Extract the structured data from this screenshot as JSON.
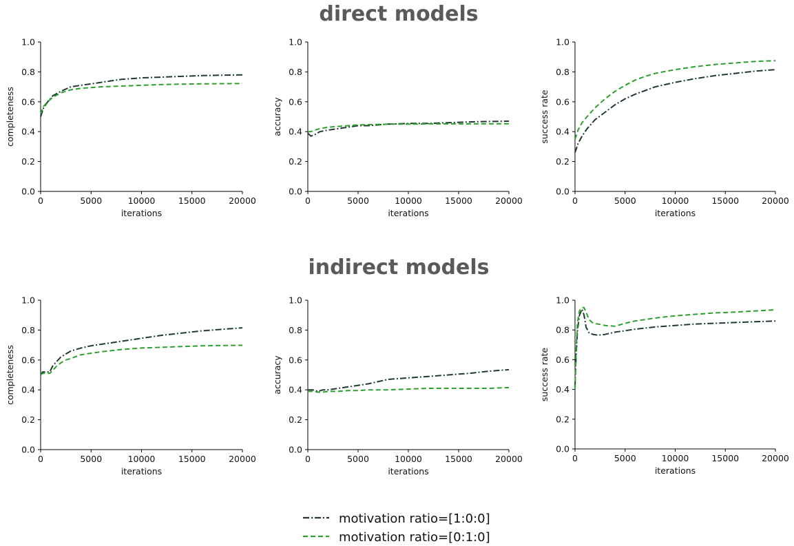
{
  "sections": [
    {
      "title": "direct models"
    },
    {
      "title": "indirect models"
    }
  ],
  "legend": [
    {
      "label": "motivation ratio=[1:0:0]",
      "color": "#1f3a2e",
      "dash": "dashdot"
    },
    {
      "label": "motivation ratio=[0:1:0]",
      "color": "#2ca02c",
      "dash": "dashed"
    }
  ],
  "chart_data": [
    {
      "type": "line",
      "section": "direct models",
      "xlabel": "iterations",
      "ylabel": "completeness",
      "xlim": [
        0,
        20000
      ],
      "ylim": [
        0,
        1.0
      ],
      "xticks": [
        "0",
        "5000",
        "10000",
        "15000",
        "20000"
      ],
      "yticks": [
        "0.0",
        "0.2",
        "0.4",
        "0.6",
        "0.8",
        "1.0"
      ],
      "series": [
        {
          "name": "motivation ratio=[1:0:0]",
          "x": [
            0,
            300,
            700,
            1200,
            2000,
            3000,
            4000,
            5000,
            6000,
            7000,
            8000,
            10000,
            12000,
            14000,
            16000,
            18000,
            20000
          ],
          "y": [
            0.5,
            0.56,
            0.6,
            0.64,
            0.67,
            0.7,
            0.71,
            0.72,
            0.73,
            0.74,
            0.75,
            0.76,
            0.765,
            0.77,
            0.775,
            0.778,
            0.78
          ]
        },
        {
          "name": "motivation ratio=[0:1:0]",
          "x": [
            0,
            300,
            700,
            1200,
            2000,
            3000,
            4000,
            5000,
            6000,
            8000,
            10000,
            12000,
            14000,
            16000,
            18000,
            20000
          ],
          "y": [
            0.52,
            0.57,
            0.6,
            0.63,
            0.66,
            0.68,
            0.69,
            0.695,
            0.7,
            0.705,
            0.71,
            0.715,
            0.718,
            0.72,
            0.721,
            0.722
          ]
        }
      ]
    },
    {
      "type": "line",
      "section": "direct models",
      "xlabel": "iterations",
      "ylabel": "accuracy",
      "xlim": [
        0,
        20000
      ],
      "ylim": [
        0,
        1.0
      ],
      "xticks": [
        "0",
        "5000",
        "10000",
        "15000",
        "20000"
      ],
      "yticks": [
        "0.0",
        "0.2",
        "0.4",
        "0.6",
        "0.8",
        "1.0"
      ],
      "series": [
        {
          "name": "motivation ratio=[1:0:0]",
          "x": [
            0,
            300,
            700,
            1200,
            2000,
            3000,
            4000,
            5000,
            6000,
            8000,
            10000,
            12000,
            14000,
            16000,
            18000,
            20000
          ],
          "y": [
            0.39,
            0.37,
            0.38,
            0.4,
            0.41,
            0.42,
            0.43,
            0.44,
            0.44,
            0.45,
            0.455,
            0.455,
            0.46,
            0.465,
            0.468,
            0.47
          ]
        },
        {
          "name": "motivation ratio=[0:1:0]",
          "x": [
            0,
            300,
            700,
            1200,
            2000,
            3000,
            4000,
            5000,
            6000,
            8000,
            10000,
            12000,
            14000,
            16000,
            18000,
            20000
          ],
          "y": [
            0.4,
            0.4,
            0.41,
            0.42,
            0.43,
            0.435,
            0.44,
            0.445,
            0.447,
            0.45,
            0.45,
            0.452,
            0.452,
            0.452,
            0.453,
            0.453
          ]
        }
      ]
    },
    {
      "type": "line",
      "section": "direct models",
      "xlabel": "iterations",
      "ylabel": "success rate",
      "xlim": [
        0,
        20000
      ],
      "ylim": [
        0,
        1.0
      ],
      "xticks": [
        "0",
        "5000",
        "10000",
        "15000",
        "20000"
      ],
      "yticks": [
        "0.0",
        "0.2",
        "0.4",
        "0.6",
        "0.8",
        "1.0"
      ],
      "series": [
        {
          "name": "motivation ratio=[1:0:0]",
          "x": [
            0,
            300,
            700,
            1200,
            2000,
            3000,
            4000,
            5000,
            6000,
            7000,
            8000,
            10000,
            12000,
            14000,
            16000,
            18000,
            20000
          ],
          "y": [
            0.26,
            0.32,
            0.37,
            0.42,
            0.48,
            0.53,
            0.58,
            0.62,
            0.65,
            0.675,
            0.7,
            0.73,
            0.755,
            0.775,
            0.79,
            0.805,
            0.815
          ]
        },
        {
          "name": "motivation ratio=[0:1:0]",
          "x": [
            0,
            300,
            700,
            1200,
            2000,
            3000,
            4000,
            5000,
            6000,
            7000,
            8000,
            10000,
            12000,
            14000,
            16000,
            18000,
            20000
          ],
          "y": [
            0.35,
            0.41,
            0.46,
            0.5,
            0.56,
            0.62,
            0.67,
            0.71,
            0.745,
            0.77,
            0.79,
            0.815,
            0.835,
            0.85,
            0.86,
            0.87,
            0.875
          ]
        }
      ]
    },
    {
      "type": "line",
      "section": "indirect models",
      "xlabel": "iterations",
      "ylabel": "completeness",
      "xlim": [
        0,
        20000
      ],
      "ylim": [
        0,
        1.0
      ],
      "xticks": [
        "0",
        "5000",
        "10000",
        "15000",
        "20000"
      ],
      "yticks": [
        "0.0",
        "0.2",
        "0.4",
        "0.6",
        "0.8",
        "1.0"
      ],
      "series": [
        {
          "name": "motivation ratio=[1:0:0]",
          "x": [
            0,
            200,
            500,
            900,
            1200,
            1600,
            2000,
            2500,
            3000,
            4000,
            5000,
            6000,
            8000,
            10000,
            12000,
            14000,
            16000,
            18000,
            20000
          ],
          "y": [
            0.5,
            0.52,
            0.52,
            0.52,
            0.56,
            0.59,
            0.62,
            0.64,
            0.66,
            0.68,
            0.695,
            0.705,
            0.725,
            0.745,
            0.765,
            0.78,
            0.795,
            0.805,
            0.815
          ]
        },
        {
          "name": "motivation ratio=[0:1:0]",
          "x": [
            0,
            200,
            500,
            900,
            1200,
            1600,
            2000,
            2500,
            3000,
            4000,
            5000,
            6000,
            8000,
            10000,
            12000,
            14000,
            16000,
            18000,
            20000
          ],
          "y": [
            0.5,
            0.51,
            0.51,
            0.51,
            0.53,
            0.56,
            0.58,
            0.6,
            0.61,
            0.635,
            0.645,
            0.655,
            0.67,
            0.68,
            0.685,
            0.69,
            0.695,
            0.697,
            0.698
          ]
        }
      ]
    },
    {
      "type": "line",
      "section": "indirect models",
      "xlabel": "iterations",
      "ylabel": "accuracy",
      "xlim": [
        0,
        20000
      ],
      "ylim": [
        0,
        1.0
      ],
      "xticks": [
        "0",
        "5000",
        "10000",
        "15000",
        "20000"
      ],
      "yticks": [
        "0.0",
        "0.2",
        "0.4",
        "0.6",
        "0.8",
        "1.0"
      ],
      "series": [
        {
          "name": "motivation ratio=[1:0:0]",
          "x": [
            0,
            500,
            1000,
            1500,
            2000,
            3000,
            4000,
            5000,
            6000,
            8000,
            10000,
            12000,
            14000,
            16000,
            18000,
            20000
          ],
          "y": [
            0.4,
            0.4,
            0.39,
            0.4,
            0.4,
            0.41,
            0.42,
            0.43,
            0.44,
            0.47,
            0.48,
            0.49,
            0.5,
            0.51,
            0.525,
            0.535
          ]
        },
        {
          "name": "motivation ratio=[0:1:0]",
          "x": [
            0,
            500,
            1000,
            1500,
            2000,
            3000,
            4000,
            5000,
            6000,
            8000,
            10000,
            12000,
            14000,
            16000,
            18000,
            20000
          ],
          "y": [
            0.39,
            0.39,
            0.385,
            0.385,
            0.39,
            0.39,
            0.395,
            0.395,
            0.4,
            0.4,
            0.405,
            0.41,
            0.41,
            0.41,
            0.41,
            0.415
          ]
        }
      ]
    },
    {
      "type": "line",
      "section": "indirect models",
      "xlabel": "iterations",
      "ylabel": "success rate",
      "xlim": [
        0,
        20000
      ],
      "ylim": [
        0,
        1.0
      ],
      "xticks": [
        "0",
        "5000",
        "10000",
        "15000",
        "20000"
      ],
      "yticks": [
        "0.0",
        "0.2",
        "0.4",
        "0.6",
        "0.8",
        "1.0"
      ],
      "series": [
        {
          "name": "motivation ratio=[1:0:0]",
          "x": [
            0,
            100,
            250,
            450,
            700,
            900,
            1100,
            1400,
            1800,
            2300,
            3000,
            4000,
            5000,
            6000,
            8000,
            10000,
            12000,
            14000,
            16000,
            18000,
            20000
          ],
          "y": [
            0.42,
            0.62,
            0.8,
            0.9,
            0.94,
            0.9,
            0.82,
            0.78,
            0.77,
            0.765,
            0.77,
            0.785,
            0.795,
            0.805,
            0.82,
            0.83,
            0.84,
            0.845,
            0.85,
            0.855,
            0.86
          ]
        },
        {
          "name": "motivation ratio=[0:1:0]",
          "x": [
            0,
            100,
            250,
            450,
            700,
            900,
            1100,
            1400,
            1800,
            2300,
            3000,
            4000,
            5000,
            6000,
            8000,
            10000,
            12000,
            14000,
            16000,
            18000,
            20000
          ],
          "y": [
            0.4,
            0.65,
            0.85,
            0.93,
            0.95,
            0.95,
            0.92,
            0.87,
            0.845,
            0.84,
            0.83,
            0.825,
            0.845,
            0.86,
            0.88,
            0.895,
            0.905,
            0.915,
            0.92,
            0.928,
            0.935
          ]
        }
      ]
    }
  ]
}
